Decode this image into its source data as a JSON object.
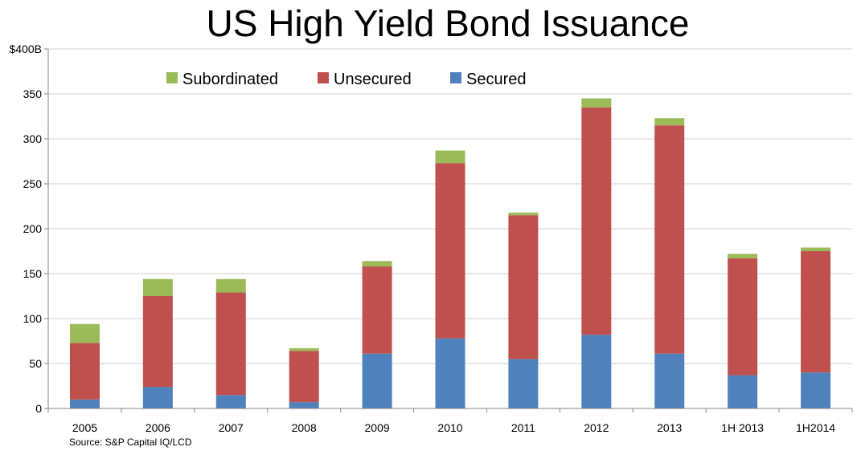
{
  "chart_data": {
    "type": "bar",
    "stacked": true,
    "title": "US High Yield Bond Issuance",
    "categories": [
      "2005",
      "2006",
      "2007",
      "2008",
      "2009",
      "2010",
      "2011",
      "2012",
      "2013",
      "1H 2013",
      "1H2014"
    ],
    "series": [
      {
        "name": "Secured",
        "color": "#4F81BD",
        "values": [
          10,
          24,
          15,
          7,
          61,
          78,
          55,
          82,
          61,
          37,
          40
        ]
      },
      {
        "name": "Unsecured",
        "color": "#C0504D",
        "values": [
          63,
          101,
          114,
          57,
          97,
          195,
          160,
          253,
          254,
          130,
          135
        ]
      },
      {
        "name": "Subordinated",
        "color": "#9BBB59",
        "values": [
          21,
          19,
          15,
          3,
          6,
          14,
          3,
          10,
          8,
          5,
          4
        ]
      }
    ],
    "ylim": [
      0,
      400
    ],
    "yticks": [
      "0",
      "50",
      "100",
      "150",
      "200",
      "250",
      "300",
      "350",
      "$400B"
    ],
    "ytick_values": [
      0,
      50,
      100,
      150,
      200,
      250,
      300,
      350,
      400
    ],
    "grid": true,
    "legend": [
      "Subordinated",
      "Unsecured",
      "Secured"
    ],
    "legend_position": "top-left",
    "source": "Source: S&P Capital IQ/LCD"
  }
}
